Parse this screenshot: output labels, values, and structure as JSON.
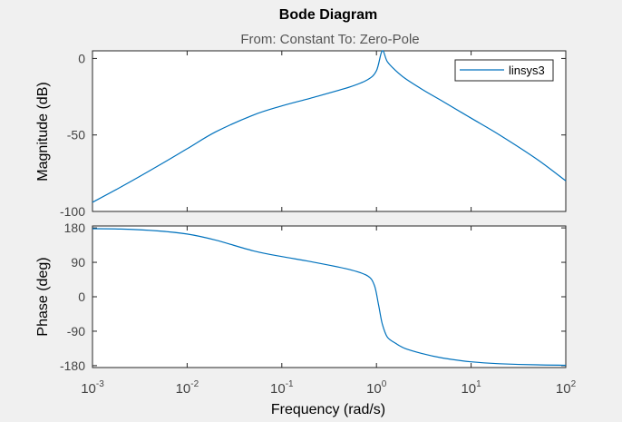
{
  "window": {
    "background": "#f0f0f0"
  },
  "chart_data": {
    "type": "line",
    "title": "Bode Diagram",
    "subtitle": "From: Constant  To: Zero-Pole",
    "xlabel": "Frequency  (rad/s)",
    "xscale": "log",
    "xlim": [
      0.001,
      100
    ],
    "xticks": [
      {
        "base": "10",
        "exp": "-3"
      },
      {
        "base": "10",
        "exp": "-2"
      },
      {
        "base": "10",
        "exp": "-1"
      },
      {
        "base": "10",
        "exp": "0"
      },
      {
        "base": "10",
        "exp": "1"
      },
      {
        "base": "10",
        "exp": "2"
      }
    ],
    "series_color": "#0072bd",
    "legend": {
      "entries": [
        "linsys3"
      ],
      "location": "top-right"
    },
    "magnitude": {
      "ylabel": "Magnitude (dB)",
      "ylim": [
        -100,
        5
      ],
      "yticks": [
        "0",
        "-50",
        "-100"
      ],
      "series": [
        {
          "name": "linsys3",
          "x": [
            0.001,
            0.002,
            0.005,
            0.01,
            0.02,
            0.05,
            0.1,
            0.2,
            0.5,
            0.8,
            1.0,
            1.15,
            1.3,
            1.6,
            2,
            3,
            5,
            10,
            20,
            50,
            100
          ],
          "y": [
            -94,
            -84,
            -70,
            -59,
            -48,
            -37,
            -31,
            -26,
            -19,
            -14,
            -8,
            5,
            -2,
            -8,
            -13,
            -20,
            -28,
            -39,
            -50,
            -66,
            -80
          ]
        }
      ]
    },
    "phase": {
      "ylabel": "Phase (deg)",
      "ylim": [
        -185,
        185
      ],
      "yticks": [
        "180",
        "90",
        "0",
        "-90",
        "-180"
      ],
      "series": [
        {
          "name": "linsys3",
          "x": [
            0.001,
            0.002,
            0.005,
            0.01,
            0.02,
            0.05,
            0.1,
            0.2,
            0.5,
            0.8,
            0.95,
            1.05,
            1.15,
            1.3,
            1.6,
            2,
            3,
            5,
            10,
            20,
            50,
            100
          ],
          "y": [
            178,
            177,
            172,
            164,
            148,
            120,
            105,
            92,
            72,
            55,
            30,
            -20,
            -70,
            -105,
            -122,
            -135,
            -148,
            -160,
            -170,
            -175,
            -178,
            -179
          ]
        }
      ]
    }
  }
}
